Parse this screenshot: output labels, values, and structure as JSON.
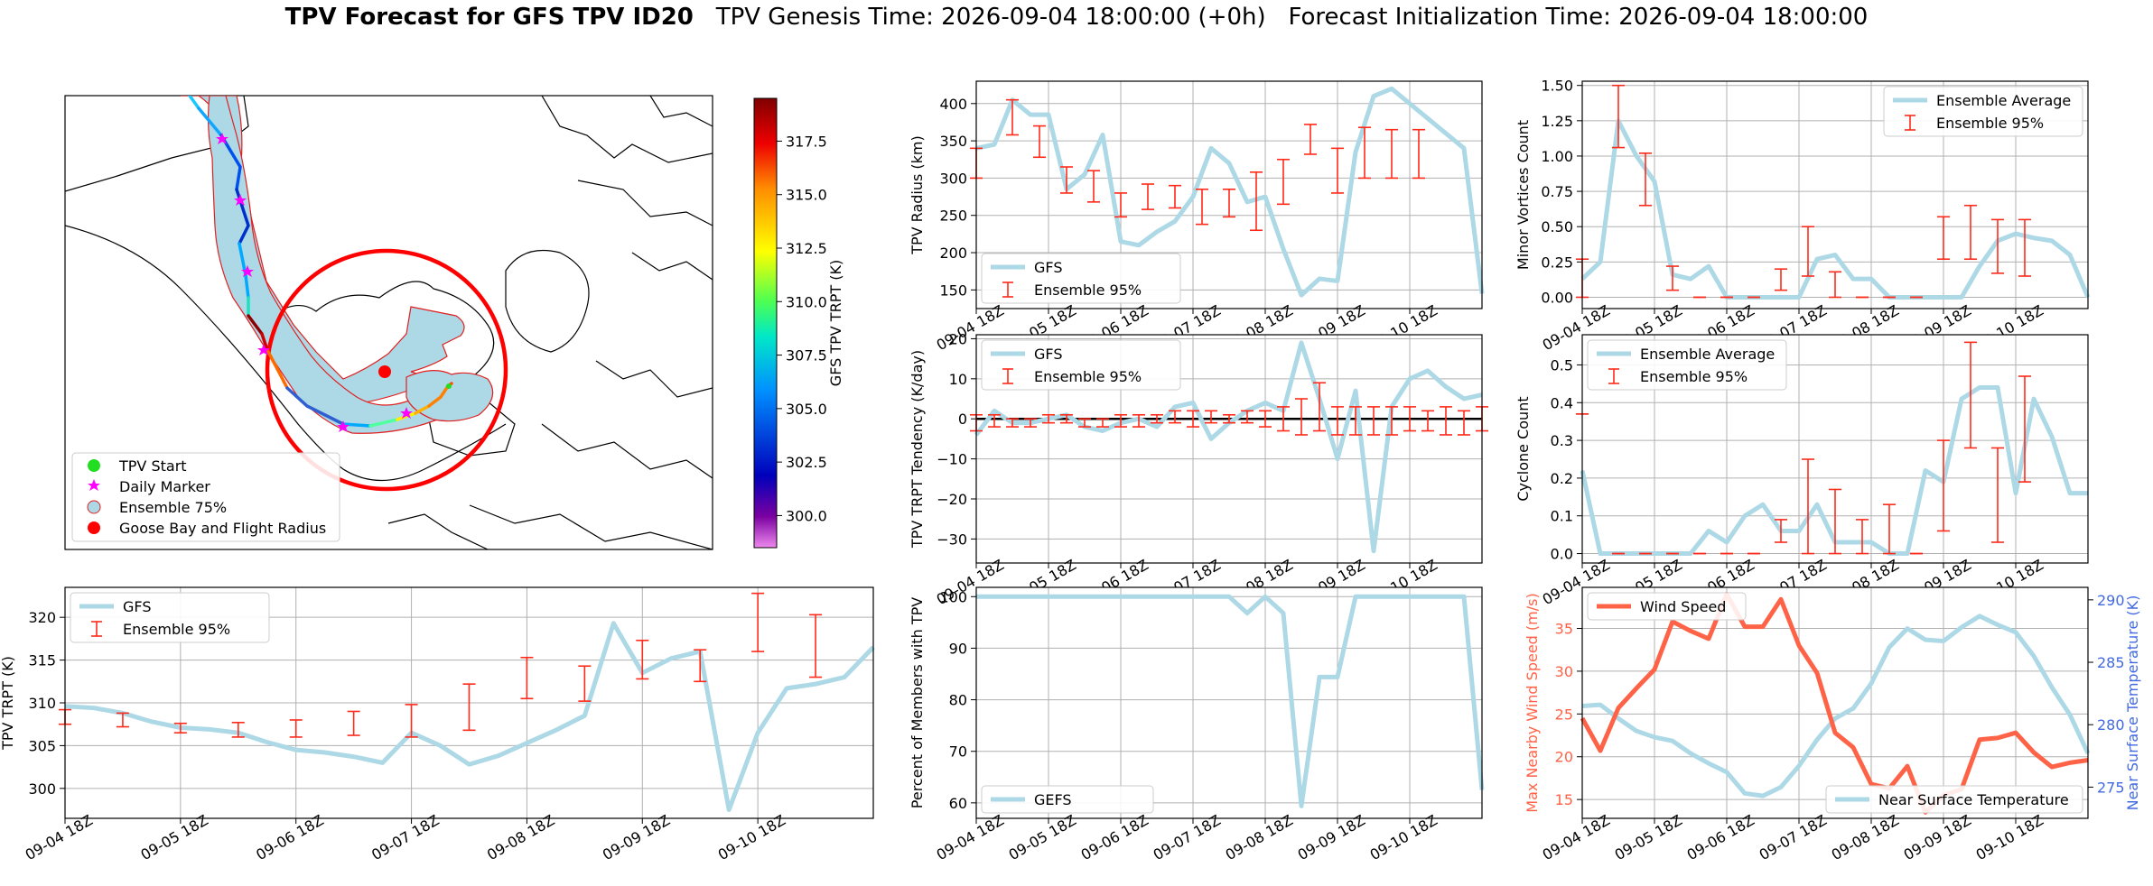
{
  "title": {
    "bold": "TPV Forecast for GFS TPV ID20",
    "genesis": "TPV Genesis Time: 2026-09-04 18:00:00 (+0h)",
    "init": "Forecast Initialization Time: 2026-09-04 18:00:00"
  },
  "colors": {
    "gfs": "#add8e6",
    "ensemble": "#ff2a1a",
    "wind": "#ff6347",
    "temp_axis": "#4169e1",
    "map_circle": "#ff0000"
  },
  "time_ticks": [
    "09-04 18Z",
    "09-05 18Z",
    "09-06 18Z",
    "09-07 18Z",
    "09-08 18Z",
    "09-09 18Z",
    "09-10 18Z"
  ],
  "map": {
    "legend": [
      "TPV Start",
      "Daily Marker",
      "Ensemble 75%",
      "Goose Bay and Flight Radius"
    ],
    "colorbar": {
      "label": "GFS TPV TRPT (K)",
      "ticks": [
        "300.0",
        "302.5",
        "305.0",
        "307.5",
        "310.0",
        "312.5",
        "315.0",
        "317.5"
      ],
      "range": [
        298.5,
        319.5
      ]
    }
  },
  "chart_data": [
    {
      "id": "radius",
      "type": "line",
      "ylabel": "TPV Radius (km)",
      "ylim": [
        125,
        430
      ],
      "yticks": [
        150,
        200,
        250,
        300,
        350,
        400
      ],
      "legend": [
        "GFS",
        "Ensemble 95%"
      ],
      "legend_loc": "lower-left",
      "x": [
        0,
        0.25,
        0.5,
        0.75,
        1,
        1.25,
        1.5,
        1.75,
        2,
        2.25,
        2.5,
        2.75,
        3,
        3.25,
        3.5,
        3.75,
        4,
        4.25,
        4.5,
        4.75,
        5,
        5.25,
        5.5,
        5.75,
        6,
        6.25,
        6.5,
        6.75,
        7
      ],
      "values": [
        340,
        345,
        405,
        385,
        385,
        285,
        305,
        358,
        215,
        210,
        228,
        242,
        275,
        340,
        320,
        268,
        275,
        205,
        143,
        165,
        162,
        335,
        410,
        420,
        400,
        380,
        360,
        340,
        145
      ],
      "err_x": [
        0,
        0.5,
        0.875,
        1.25,
        1.625,
        2,
        2.375,
        2.75,
        3.125,
        3.5,
        3.875,
        4.25,
        4.625,
        5,
        5.375,
        5.75,
        6.125
      ],
      "err_lo": [
        300,
        358,
        328,
        280,
        268,
        248,
        258,
        260,
        238,
        248,
        230,
        265,
        332,
        280,
        300,
        300,
        300
      ],
      "err_hi": [
        340,
        405,
        370,
        315,
        310,
        280,
        292,
        290,
        285,
        285,
        308,
        325,
        372,
        340,
        368,
        365,
        365
      ]
    },
    {
      "id": "minor",
      "type": "line",
      "ylabel": "Minor Vortices Count",
      "ylim": [
        -0.08,
        1.53
      ],
      "yticks": [
        0.0,
        0.25,
        0.5,
        0.75,
        1.0,
        1.25,
        1.5
      ],
      "legend": [
        "Ensemble Average",
        "Ensemble 95%"
      ],
      "legend_loc": "upper-right",
      "x": [
        0,
        0.25,
        0.5,
        0.75,
        1,
        1.25,
        1.5,
        1.75,
        2,
        2.25,
        2.5,
        2.75,
        3,
        3.25,
        3.5,
        3.75,
        4,
        4.25,
        4.5,
        4.75,
        5,
        5.25,
        5.5,
        5.75,
        6,
        6.25,
        6.5,
        6.75,
        7
      ],
      "values": [
        0.13,
        0.25,
        1.25,
        1.0,
        0.82,
        0.16,
        0.13,
        0.22,
        0.0,
        0.0,
        0.0,
        0.0,
        0.0,
        0.27,
        0.3,
        0.13,
        0.13,
        0.0,
        0.0,
        0.0,
        0.0,
        0.0,
        0.22,
        0.4,
        0.45,
        0.42,
        0.4,
        0.3,
        0.0
      ],
      "err_x": [
        0,
        0.5,
        0.875,
        1.25,
        1.625,
        2,
        2.375,
        2.75,
        3.125,
        3.5,
        3.875,
        4.25,
        4.625,
        5,
        5.375,
        5.75,
        6.125
      ],
      "err_lo": [
        0.0,
        1.06,
        0.65,
        0.05,
        0.0,
        0.0,
        0.0,
        0.05,
        0.15,
        0.0,
        0.0,
        0.0,
        0.0,
        0.27,
        0.27,
        0.17,
        0.15
      ],
      "err_hi": [
        0.27,
        1.5,
        1.02,
        0.22,
        0.0,
        0.0,
        0.0,
        0.2,
        0.5,
        0.18,
        0.0,
        0.0,
        0.0,
        0.57,
        0.65,
        0.55,
        0.55
      ]
    },
    {
      "id": "tendency",
      "type": "line",
      "ylabel": "TPV TRPT Tendency (K/day)",
      "ylim": [
        -36,
        21
      ],
      "yticks": [
        -30,
        -20,
        -10,
        0,
        10,
        20
      ],
      "legend": [
        "GFS",
        "Ensemble 95%"
      ],
      "legend_loc": "upper-left",
      "zero_line": true,
      "x": [
        0,
        0.25,
        0.5,
        0.75,
        1,
        1.25,
        1.5,
        1.75,
        2,
        2.25,
        2.5,
        2.75,
        3,
        3.25,
        3.5,
        3.75,
        4,
        4.25,
        4.5,
        4.75,
        5,
        5.25,
        5.5,
        5.75,
        6,
        6.25,
        6.5,
        6.75,
        7
      ],
      "values": [
        -4,
        2,
        -1,
        -1,
        0,
        1,
        -2,
        -3,
        -1,
        0,
        -2,
        3,
        4,
        -5,
        -1,
        2,
        4,
        2,
        19,
        5,
        -10,
        7,
        -33,
        3,
        10,
        12,
        8,
        5,
        6
      ],
      "err_x": [
        0,
        0.25,
        0.5,
        0.75,
        1,
        1.25,
        1.5,
        1.75,
        2,
        2.25,
        2.5,
        2.75,
        3,
        3.25,
        3.5,
        3.75,
        4,
        4.25,
        4.5,
        4.75,
        5,
        5.25,
        5.5,
        5.75,
        6,
        6.25,
        6.5,
        6.75,
        7
      ],
      "err_lo": [
        -3,
        -2,
        -2,
        -2,
        -1,
        -1,
        -2,
        -2,
        -2,
        -2,
        -1,
        -1,
        -2,
        -1,
        -1,
        -1,
        -2,
        -3,
        -4,
        -3,
        -4,
        -4,
        -4,
        -4,
        -3,
        -3,
        -4,
        -4,
        -3
      ],
      "err_hi": [
        1,
        1,
        0,
        0,
        1,
        1,
        0,
        0,
        1,
        1,
        1,
        2,
        2,
        2,
        1,
        2,
        2,
        3,
        5,
        9,
        3,
        3,
        3,
        3,
        3,
        2,
        3,
        2,
        3
      ]
    },
    {
      "id": "cyclone",
      "type": "line",
      "ylabel": "Cyclone Count",
      "ylim": [
        -0.025,
        0.58
      ],
      "yticks": [
        0.0,
        0.1,
        0.2,
        0.3,
        0.4,
        0.5
      ],
      "legend": [
        "Ensemble Average",
        "Ensemble 95%"
      ],
      "legend_loc": "upper-left",
      "x": [
        0,
        0.25,
        0.5,
        0.75,
        1,
        1.25,
        1.5,
        1.75,
        2,
        2.25,
        2.5,
        2.75,
        3,
        3.25,
        3.5,
        3.75,
        4,
        4.25,
        4.5,
        4.75,
        5,
        5.25,
        5.5,
        5.75,
        6,
        6.25,
        6.5,
        6.75,
        7
      ],
      "values": [
        0.22,
        0.0,
        0.0,
        0.0,
        0.0,
        0.0,
        0.0,
        0.06,
        0.03,
        0.1,
        0.13,
        0.06,
        0.06,
        0.13,
        0.03,
        0.03,
        0.03,
        0.0,
        0.0,
        0.22,
        0.19,
        0.41,
        0.44,
        0.44,
        0.16,
        0.41,
        0.31,
        0.16,
        0.16
      ],
      "err_x": [
        0,
        0.5,
        0.875,
        1.25,
        1.625,
        2,
        2.375,
        2.75,
        3.125,
        3.5,
        3.875,
        4.25,
        4.625,
        5,
        5.375,
        5.75,
        6.125
      ],
      "err_lo": [
        0.37,
        0.0,
        0.0,
        0.0,
        0.0,
        0.0,
        0.0,
        0.03,
        0.0,
        0.0,
        0.0,
        0.0,
        0.0,
        0.06,
        0.28,
        0.03,
        0.19
      ],
      "err_hi": [
        0.37,
        0.0,
        0.0,
        0.0,
        0.0,
        0.0,
        0.0,
        0.09,
        0.25,
        0.17,
        0.09,
        0.13,
        0.0,
        0.3,
        0.56,
        0.28,
        0.47
      ]
    },
    {
      "id": "trpt",
      "type": "line",
      "ylabel": "TPV TRPT (K)",
      "ylim": [
        296.5,
        323.5
      ],
      "yticks": [
        300,
        305,
        310,
        315,
        320
      ],
      "legend": [
        "GFS",
        "Ensemble 95%"
      ],
      "legend_loc": "upper-left",
      "x": [
        0,
        0.25,
        0.5,
        0.75,
        1,
        1.25,
        1.5,
        1.75,
        2,
        2.25,
        2.5,
        2.75,
        3,
        3.25,
        3.5,
        3.75,
        4,
        4.25,
        4.5,
        4.75,
        5,
        5.25,
        5.5,
        5.75,
        6,
        6.25,
        6.5,
        6.75,
        7
      ],
      "values": [
        309.6,
        309.4,
        308.8,
        307.8,
        307.1,
        306.9,
        306.5,
        305.4,
        304.5,
        304.2,
        303.7,
        303.0,
        306.5,
        305.0,
        302.8,
        303.8,
        305.3,
        306.8,
        308.5,
        319.3,
        313.5,
        315.2,
        316.0,
        297.5,
        306.5,
        311.7,
        312.2,
        313.0,
        316.5
      ],
      "err_x": [
        0,
        0.5,
        1,
        1.5,
        2,
        2.5,
        3,
        3.5,
        4,
        4.5,
        5,
        5.5,
        6,
        6.5
      ],
      "err_lo": [
        307.5,
        307.2,
        306.5,
        306.0,
        306.0,
        306.2,
        306.0,
        306.8,
        310.5,
        310.2,
        312.8,
        312.5,
        316.0,
        313.0
      ],
      "err_hi": [
        309.2,
        308.8,
        307.6,
        307.7,
        308.0,
        309.0,
        309.8,
        312.2,
        315.3,
        314.3,
        317.3,
        316.2,
        322.8,
        320.3
      ]
    },
    {
      "id": "members",
      "type": "line",
      "ylabel": "Percent of Members with TPV",
      "ylim": [
        57,
        101.8
      ],
      "yticks": [
        60,
        70,
        80,
        90,
        100
      ],
      "legend": [
        "GEFS"
      ],
      "legend_loc": "lower-left",
      "x": [
        0,
        0.25,
        0.5,
        0.75,
        1,
        1.25,
        1.5,
        1.75,
        2,
        2.25,
        2.5,
        2.75,
        3,
        3.25,
        3.5,
        3.75,
        4,
        4.25,
        4.5,
        4.75,
        5,
        5.25,
        5.5,
        5.75,
        6,
        6.25,
        6.5,
        6.75,
        7
      ],
      "values": [
        100,
        100,
        100,
        100,
        100,
        100,
        100,
        100,
        100,
        100,
        100,
        100,
        100,
        100,
        100,
        96.8,
        100,
        96.8,
        59.4,
        84.4,
        84.4,
        100,
        100,
        100,
        100,
        100,
        100,
        100,
        62.5
      ]
    },
    {
      "id": "wind_temp",
      "type": "line",
      "dual_axis": true,
      "ylabel": "Max Nearby Wind Speed (m/s)",
      "y2label": "Near Surface Temperature (K)",
      "ylim": [
        12.8,
        39.8
      ],
      "yticks": [
        15,
        20,
        25,
        30,
        35
      ],
      "y2lim": [
        272.5,
        291.0
      ],
      "y2ticks": [
        275,
        280,
        285,
        290
      ],
      "legend": [
        "Wind Speed",
        "Near Surface Temperature"
      ],
      "x": [
        0,
        0.25,
        0.5,
        0.75,
        1,
        1.25,
        1.5,
        1.75,
        2,
        2.25,
        2.5,
        2.75,
        3,
        3.25,
        3.5,
        3.75,
        4,
        4.25,
        4.5,
        4.75,
        5,
        5.25,
        5.5,
        5.75,
        6,
        6.25,
        6.5,
        6.75,
        7
      ],
      "series": [
        {
          "name": "Wind Speed",
          "values": [
            24.5,
            20.7,
            25.7,
            28.0,
            30.2,
            35.8,
            34.7,
            33.8,
            39.0,
            35.2,
            35.2,
            38.4,
            33.0,
            29.8,
            22.8,
            21.1,
            16.8,
            16.3,
            18.9,
            13.5,
            15.5,
            16.2,
            22.0,
            22.2,
            22.8,
            20.5,
            18.8,
            19.3,
            19.6
          ]
        },
        {
          "name": "Near Surface Temperature",
          "values": [
            281.5,
            281.6,
            280.5,
            279.5,
            279.0,
            278.7,
            277.7,
            276.9,
            276.2,
            274.5,
            274.3,
            275.0,
            276.7,
            278.8,
            280.5,
            281.3,
            283.3,
            286.2,
            287.7,
            286.8,
            286.7,
            287.8,
            288.7,
            288.0,
            287.4,
            285.5,
            283.0,
            280.8,
            277.7
          ]
        }
      ]
    }
  ]
}
